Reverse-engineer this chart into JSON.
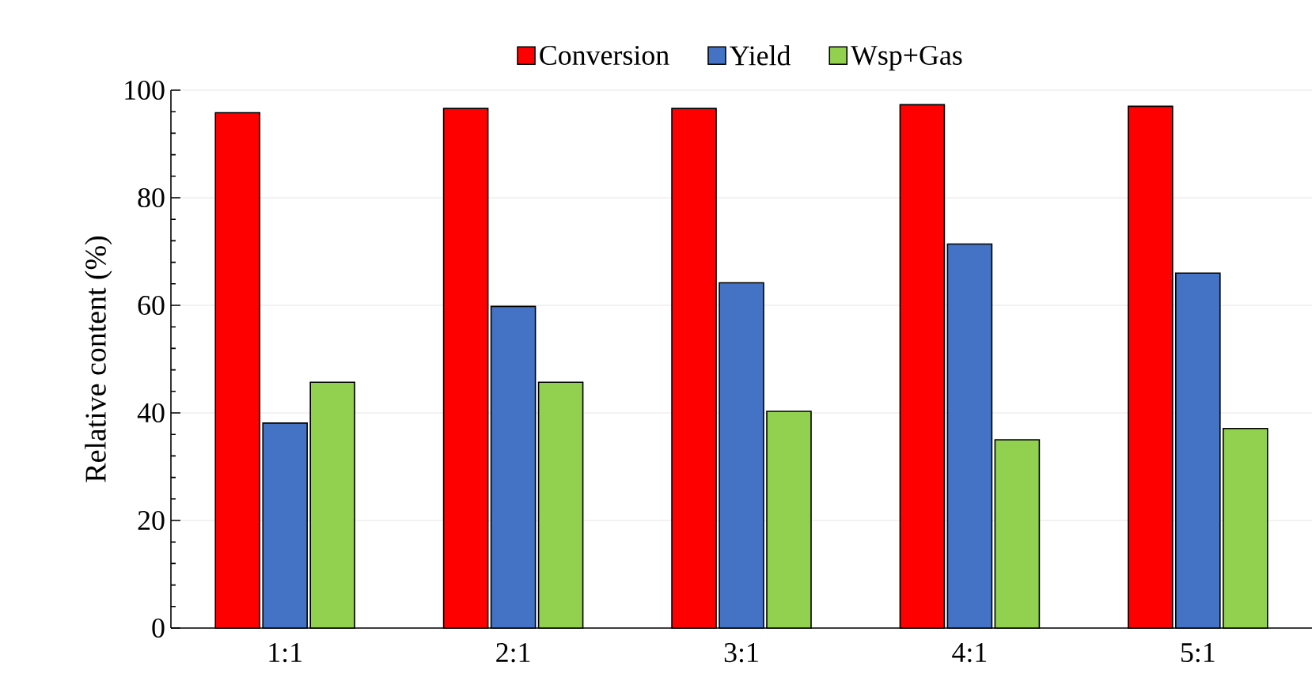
{
  "chart_data": {
    "type": "bar",
    "ylabel": "Relative content (%)",
    "categories": [
      "1:1",
      "2:1",
      "3:1",
      "4:1",
      "5:1"
    ],
    "series": [
      {
        "name": "Conversion",
        "color": "#ff0000",
        "values": [
          95.8,
          96.6,
          96.6,
          97.3,
          97.0
        ]
      },
      {
        "name": "Yield",
        "color": "#4472c4",
        "values": [
          38.1,
          59.8,
          64.2,
          71.4,
          66.0
        ]
      },
      {
        "name": "Wsp+Gas",
        "color": "#92d050",
        "values": [
          45.7,
          45.7,
          40.3,
          35.0,
          37.1
        ]
      }
    ],
    "ylim": [
      0,
      100
    ],
    "yticks": [
      0,
      20,
      40,
      60,
      80,
      100
    ],
    "grid": "y",
    "legend": "top"
  }
}
